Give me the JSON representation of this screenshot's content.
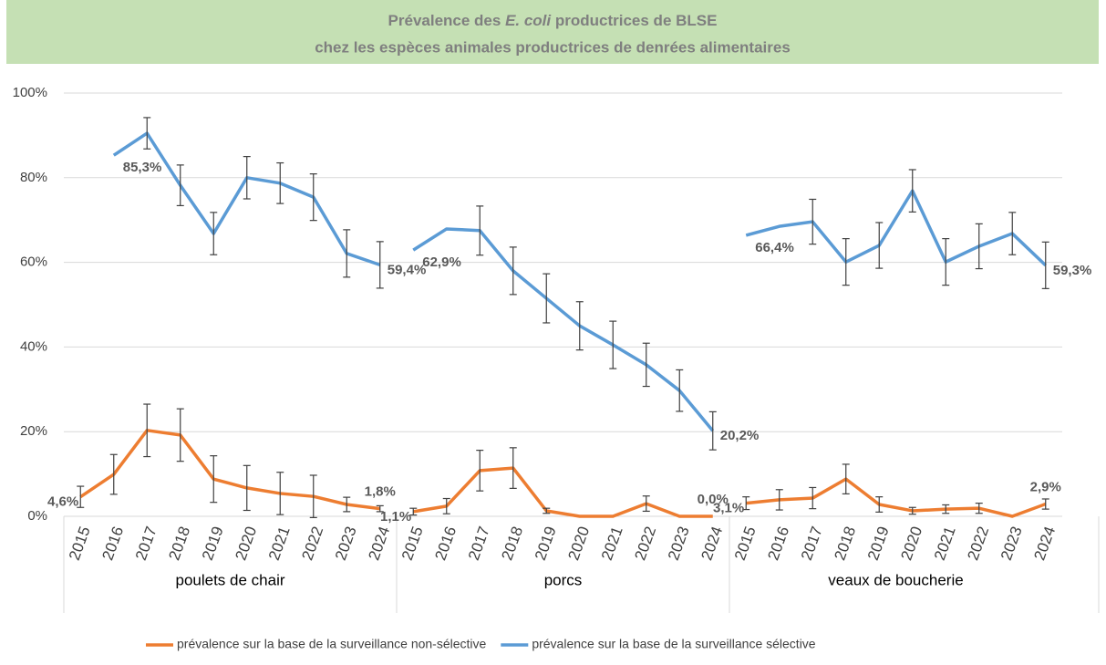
{
  "chart_data": {
    "type": "line",
    "title": {
      "line1": [
        "Prévalence des ",
        "E. coli",
        " productrices de BLSE"
      ],
      "line2": "chez les espèces animales productrices de denrées alimentaires"
    },
    "groups": [
      {
        "name": "poulets de chair",
        "categories": [
          "2015",
          "2016",
          "2017",
          "2018",
          "2019",
          "2020",
          "2021",
          "2022",
          "2023",
          "2024"
        ]
      },
      {
        "name": "porcs",
        "categories": [
          "2015",
          "2016",
          "2017",
          "2018",
          "2019",
          "2020",
          "2021",
          "2022",
          "2023",
          "2024"
        ]
      },
      {
        "name": "veaux de boucherie",
        "categories": [
          "2015",
          "2016",
          "2017",
          "2018",
          "2019",
          "2020",
          "2021",
          "2022",
          "2023",
          "2024"
        ]
      }
    ],
    "series": [
      {
        "name": "prévalence sur la base de la surveillance non-sélective",
        "color": "#ed7d31",
        "values": [
          4.6,
          9.9,
          20.3,
          19.2,
          8.8,
          6.7,
          5.4,
          4.7,
          2.8,
          1.8,
          1.1,
          2.4,
          10.8,
          11.4,
          1.3,
          0,
          0,
          3.0,
          0,
          0.0,
          3.1,
          3.9,
          4.3,
          8.8,
          2.8,
          1.3,
          1.7,
          1.9,
          0,
          2.9
        ],
        "errors": [
          2.5,
          4.7,
          6.2,
          6.2,
          5.5,
          5.3,
          5.0,
          5.0,
          1.7,
          0.7,
          0.8,
          1.8,
          4.8,
          4.8,
          0.6,
          null,
          null,
          1.8,
          null,
          null,
          1.5,
          2.4,
          2.5,
          3.5,
          1.8,
          0.8,
          1.0,
          1.2,
          null,
          1.2
        ],
        "value_labels": [
          "4,6%",
          null,
          null,
          null,
          null,
          null,
          null,
          null,
          null,
          "1,8%",
          "1,1%",
          null,
          null,
          null,
          null,
          null,
          null,
          null,
          null,
          "0,0%",
          "3,1%",
          null,
          null,
          null,
          null,
          null,
          null,
          null,
          null,
          "2,9%"
        ]
      },
      {
        "name": "prévalence sur la base de la surveillance sélective",
        "color": "#5b9bd5",
        "values": [
          null,
          85.3,
          90.5,
          78.2,
          66.8,
          80.0,
          78.7,
          75.4,
          62.1,
          59.4,
          62.9,
          67.9,
          67.5,
          58.0,
          51.5,
          45.0,
          40.5,
          35.8,
          29.7,
          20.2,
          66.4,
          68.5,
          69.6,
          60.1,
          64.0,
          76.9,
          60.1,
          63.8,
          66.8,
          59.3
        ],
        "errors": [
          null,
          null,
          3.7,
          4.8,
          5.0,
          5.0,
          4.8,
          5.5,
          5.6,
          5.5,
          null,
          null,
          5.8,
          5.6,
          5.8,
          5.7,
          5.6,
          5.1,
          4.9,
          4.5,
          null,
          null,
          5.3,
          5.5,
          5.4,
          5.0,
          5.5,
          5.3,
          5.0,
          5.5
        ],
        "value_labels": [
          null,
          "85,3%",
          null,
          null,
          null,
          null,
          null,
          null,
          null,
          "59,4%",
          "62,9%",
          null,
          null,
          null,
          null,
          null,
          null,
          null,
          null,
          "20,2%",
          "66,4%",
          null,
          null,
          null,
          null,
          null,
          null,
          null,
          null,
          "59,3%"
        ]
      }
    ],
    "ylim": [
      0,
      100
    ],
    "yticks": [
      {
        "value": 0,
        "label": "0%"
      },
      {
        "value": 20,
        "label": "20%"
      },
      {
        "value": 40,
        "label": "40%"
      },
      {
        "value": 60,
        "label": "60%"
      },
      {
        "value": 80,
        "label": "80%"
      },
      {
        "value": 100,
        "label": "100%"
      }
    ],
    "grid": true,
    "legend": "bottom"
  }
}
